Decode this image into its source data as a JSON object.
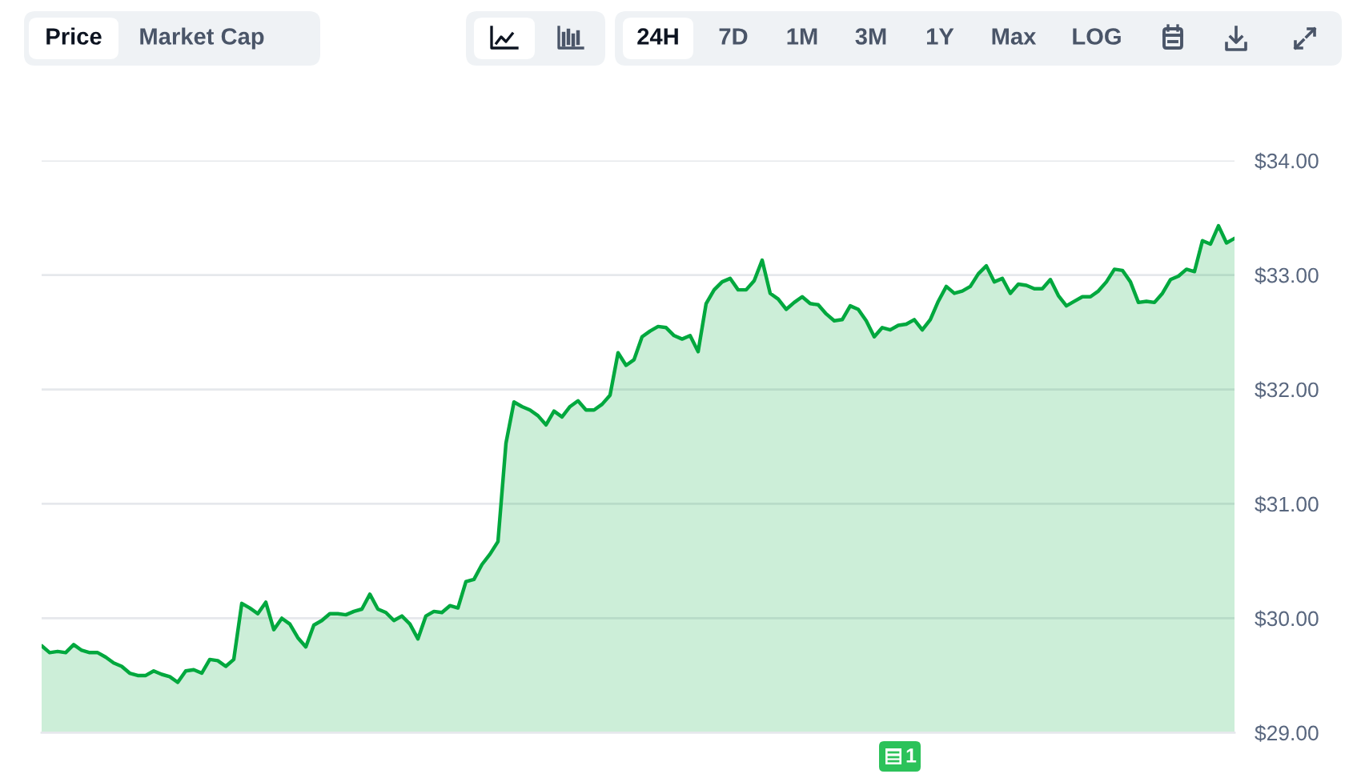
{
  "chart_data": {
    "type": "area",
    "categories": [
      null,
      null,
      null,
      null,
      null,
      null,
      null,
      null,
      null,
      null,
      null,
      null,
      null,
      null,
      null,
      null,
      null,
      null,
      null,
      null,
      null,
      null,
      null,
      null,
      null,
      null,
      null,
      null,
      null,
      null,
      null,
      null,
      null,
      null,
      null,
      null,
      null,
      null,
      null,
      null,
      null,
      null,
      null,
      null,
      null,
      null,
      null,
      null,
      null,
      null,
      null,
      null,
      null,
      null,
      null,
      null,
      null,
      null,
      null,
      null,
      null,
      null,
      null,
      null,
      null,
      null,
      null,
      null,
      null,
      null,
      null,
      null,
      null,
      null,
      null,
      null,
      null,
      null,
      null,
      null,
      null,
      null,
      null,
      null,
      null,
      null,
      null,
      null,
      null,
      null,
      null,
      null,
      null,
      null,
      null,
      null,
      null,
      null,
      null,
      null,
      null,
      null,
      null,
      null,
      null,
      null,
      null,
      null,
      null,
      null,
      null,
      null,
      null,
      null,
      null,
      null,
      null,
      null,
      null,
      null,
      null,
      null,
      null,
      null,
      null,
      null,
      null,
      null,
      null,
      null,
      null,
      null,
      null,
      null,
      null,
      null,
      null,
      null,
      null,
      null,
      null,
      null,
      null,
      null,
      null,
      null,
      null,
      null,
      null,
      null
    ],
    "series": [
      {
        "color": "#00a83e",
        "values": [
          29.76,
          29.7,
          29.71,
          29.7,
          29.77,
          29.72,
          29.7,
          29.7,
          29.66,
          29.61,
          29.58,
          29.52,
          29.5,
          29.5,
          29.54,
          29.51,
          29.49,
          29.44,
          29.54,
          29.55,
          29.52,
          29.64,
          29.63,
          29.58,
          29.64,
          30.13,
          30.09,
          30.04,
          30.14,
          29.9,
          30.0,
          29.95,
          29.83,
          29.75,
          29.94,
          29.98,
          30.04,
          30.04,
          30.03,
          30.06,
          30.08,
          30.21,
          30.08,
          30.05,
          29.98,
          30.02,
          29.95,
          29.82,
          30.02,
          30.06,
          30.05,
          30.11,
          30.09,
          30.32,
          30.34,
          30.47,
          30.56,
          30.67,
          31.53,
          31.89,
          31.85,
          31.82,
          31.77,
          31.69,
          31.81,
          31.76,
          31.85,
          31.9,
          31.82,
          31.82,
          31.87,
          31.95,
          32.32,
          32.21,
          32.26,
          32.46,
          32.51,
          32.55,
          32.54,
          32.47,
          32.44,
          32.47,
          32.33,
          32.75,
          32.87,
          32.94,
          32.97,
          32.87,
          32.87,
          32.95,
          33.13,
          32.84,
          32.79,
          32.7,
          32.76,
          32.81,
          32.75,
          32.74,
          32.66,
          32.6,
          32.61,
          32.73,
          32.7,
          32.6,
          32.46,
          32.54,
          32.52,
          32.56,
          32.57,
          32.61,
          32.52,
          32.61,
          32.77,
          32.9,
          32.84,
          32.86,
          32.9,
          33.01,
          33.08,
          32.94,
          32.97,
          32.84,
          32.92,
          32.91,
          32.88,
          32.88,
          32.96,
          32.82,
          32.73,
          32.77,
          32.81,
          32.81,
          32.86,
          32.94,
          33.05,
          33.04,
          32.94,
          32.76,
          32.77,
          32.76,
          32.84,
          32.96,
          32.99,
          33.05,
          33.03,
          33.3,
          33.27,
          33.43,
          33.28,
          33.32
        ]
      }
    ],
    "ylim": [
      29,
      34
    ],
    "yticks": [
      {
        "value": 29,
        "label": "$29.00"
      },
      {
        "value": 30,
        "label": "$30.00"
      },
      {
        "value": 31,
        "label": "$31.00"
      },
      {
        "value": 32,
        "label": "$32.00"
      },
      {
        "value": 33,
        "label": "$33.00"
      },
      {
        "value": 34,
        "label": "$34.00"
      }
    ],
    "grid": "y",
    "tick_labels": "y",
    "annotations": [
      "Price",
      "Market Cap",
      "24H",
      "7D",
      "1M",
      "3M",
      "1Y",
      "Max",
      "LOG",
      "1"
    ]
  }
}
